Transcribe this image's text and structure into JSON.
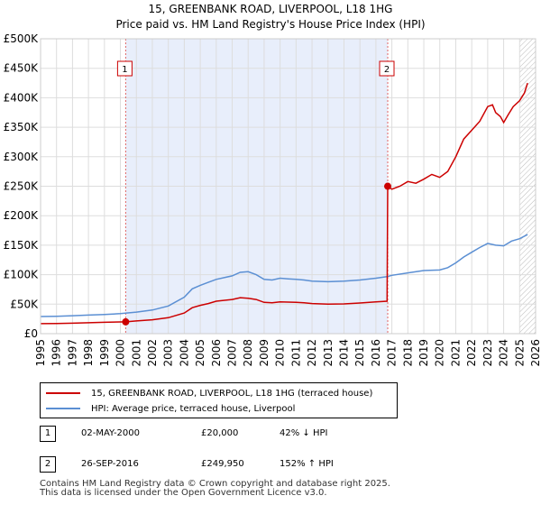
{
  "chart_data": {
    "type": "line",
    "title": "15, GREENBANK ROAD, LIVERPOOL, L18 1HG",
    "subtitle": "Price paid vs. HM Land Registry's House Price Index (HPI)",
    "xlabel": "",
    "ylabel": "",
    "xlim": [
      1995,
      2026
    ],
    "ylim": [
      0,
      500000
    ],
    "x_ticks": [
      "1995",
      "1996",
      "1997",
      "1998",
      "1999",
      "2000",
      "2001",
      "2002",
      "2003",
      "2004",
      "2005",
      "2006",
      "2007",
      "2008",
      "2009",
      "2010",
      "2011",
      "2012",
      "2013",
      "2014",
      "2015",
      "2016",
      "2017",
      "2018",
      "2019",
      "2020",
      "2021",
      "2022",
      "2023",
      "2024",
      "2025",
      "2026"
    ],
    "y_ticks": [
      {
        "value": 0,
        "label": "£0"
      },
      {
        "value": 50000,
        "label": "£50K"
      },
      {
        "value": 100000,
        "label": "£100K"
      },
      {
        "value": 150000,
        "label": "£150K"
      },
      {
        "value": 200000,
        "label": "£200K"
      },
      {
        "value": 250000,
        "label": "£250K"
      },
      {
        "value": 300000,
        "label": "£300K"
      },
      {
        "value": 350000,
        "label": "£350K"
      },
      {
        "value": 400000,
        "label": "£400K"
      },
      {
        "value": 450000,
        "label": "£450K"
      },
      {
        "value": 500000,
        "label": "£500K"
      }
    ],
    "grid": true,
    "shaded_period": [
      2000.33,
      2016.74
    ],
    "forecast_start": 2025.0,
    "series": [
      {
        "name": "15, GREENBANK ROAD, LIVERPOOL, L18 1HG (terraced house)",
        "color": "#cc0000",
        "points": [
          [
            1995.0,
            17000
          ],
          [
            1996.0,
            17300
          ],
          [
            1997.0,
            17800
          ],
          [
            1998.0,
            18500
          ],
          [
            1999.0,
            19200
          ],
          [
            2000.33,
            20000
          ],
          [
            2001.0,
            21500
          ],
          [
            2002.0,
            23500
          ],
          [
            2003.0,
            27000
          ],
          [
            2004.0,
            35000
          ],
          [
            2004.5,
            44000
          ],
          [
            2005.0,
            48000
          ],
          [
            2005.5,
            51000
          ],
          [
            2006.0,
            55000
          ],
          [
            2007.0,
            58000
          ],
          [
            2007.5,
            61000
          ],
          [
            2008.0,
            60000
          ],
          [
            2008.5,
            58000
          ],
          [
            2009.0,
            53000
          ],
          [
            2009.5,
            52500
          ],
          [
            2010.0,
            54000
          ],
          [
            2010.5,
            53500
          ],
          [
            2011.0,
            53000
          ],
          [
            2011.5,
            52500
          ],
          [
            2012.0,
            51000
          ],
          [
            2013.0,
            50000
          ],
          [
            2014.0,
            50500
          ],
          [
            2015.0,
            52000
          ],
          [
            2016.0,
            54000
          ],
          [
            2016.7,
            55000
          ],
          [
            2016.74,
            249950
          ],
          [
            2017.0,
            245000
          ],
          [
            2017.5,
            250000
          ],
          [
            2018.0,
            258000
          ],
          [
            2018.5,
            255000
          ],
          [
            2019.0,
            262000
          ],
          [
            2019.5,
            270000
          ],
          [
            2020.0,
            265000
          ],
          [
            2020.5,
            275000
          ],
          [
            2021.0,
            300000
          ],
          [
            2021.5,
            330000
          ],
          [
            2022.0,
            345000
          ],
          [
            2022.5,
            360000
          ],
          [
            2023.0,
            385000
          ],
          [
            2023.3,
            388000
          ],
          [
            2023.5,
            375000
          ],
          [
            2023.8,
            368000
          ],
          [
            2024.0,
            358000
          ],
          [
            2024.3,
            372000
          ],
          [
            2024.6,
            385000
          ],
          [
            2025.0,
            395000
          ],
          [
            2025.3,
            408000
          ],
          [
            2025.5,
            425000
          ]
        ]
      },
      {
        "name": "HPI: Average price, terraced house, Liverpool",
        "color": "#5b8fd3",
        "points": [
          [
            1995.0,
            29000
          ],
          [
            1996.0,
            29500
          ],
          [
            1997.0,
            30500
          ],
          [
            1998.0,
            31500
          ],
          [
            1999.0,
            32500
          ],
          [
            2000.0,
            34000
          ],
          [
            2001.0,
            36500
          ],
          [
            2002.0,
            40000
          ],
          [
            2003.0,
            47000
          ],
          [
            2004.0,
            62000
          ],
          [
            2004.5,
            76000
          ],
          [
            2005.0,
            82000
          ],
          [
            2005.5,
            87000
          ],
          [
            2006.0,
            92000
          ],
          [
            2007.0,
            98000
          ],
          [
            2007.5,
            104000
          ],
          [
            2008.0,
            105000
          ],
          [
            2008.5,
            100000
          ],
          [
            2009.0,
            92000
          ],
          [
            2009.5,
            91000
          ],
          [
            2010.0,
            94000
          ],
          [
            2010.5,
            93000
          ],
          [
            2011.0,
            92000
          ],
          [
            2011.5,
            91000
          ],
          [
            2012.0,
            89000
          ],
          [
            2013.0,
            88000
          ],
          [
            2014.0,
            89000
          ],
          [
            2015.0,
            91000
          ],
          [
            2016.0,
            94000
          ],
          [
            2016.74,
            97000
          ],
          [
            2017.0,
            99000
          ],
          [
            2018.0,
            103000
          ],
          [
            2019.0,
            107000
          ],
          [
            2020.0,
            108000
          ],
          [
            2020.5,
            112000
          ],
          [
            2021.0,
            120000
          ],
          [
            2021.5,
            130000
          ],
          [
            2022.0,
            138000
          ],
          [
            2022.5,
            146000
          ],
          [
            2023.0,
            153000
          ],
          [
            2023.5,
            150000
          ],
          [
            2024.0,
            149000
          ],
          [
            2024.5,
            157000
          ],
          [
            2025.0,
            161000
          ],
          [
            2025.5,
            168000
          ]
        ]
      }
    ],
    "annotations": [
      {
        "label": "1",
        "x": 2000.33,
        "y": 20000
      },
      {
        "label": "2",
        "x": 2016.74,
        "y": 249950
      }
    ]
  },
  "legend": {
    "property": "15, GREENBANK ROAD, LIVERPOOL, L18 1HG (terraced house)",
    "hpi": "HPI: Average price, terraced house, Liverpool"
  },
  "sales": [
    {
      "num": "1",
      "date": "02-MAY-2000",
      "price": "£20,000",
      "hpi": "42% ↓ HPI"
    },
    {
      "num": "2",
      "date": "26-SEP-2016",
      "price": "£249,950",
      "hpi": "152% ↑ HPI"
    }
  ],
  "footer": {
    "line1": "Contains HM Land Registry data © Crown copyright and database right 2025.",
    "line2": "This data is licensed under the Open Government Licence v3.0."
  }
}
